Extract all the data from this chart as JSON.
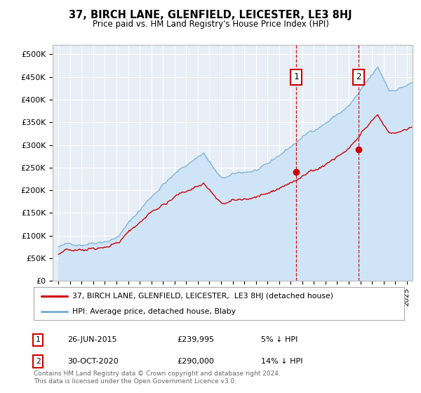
{
  "title": "37, BIRCH LANE, GLENFIELD, LEICESTER, LE3 8HJ",
  "subtitle": "Price paid vs. HM Land Registry's House Price Index (HPI)",
  "ylabel_ticks": [
    "£0",
    "£50K",
    "£100K",
    "£150K",
    "£200K",
    "£250K",
    "£300K",
    "£350K",
    "£400K",
    "£450K",
    "£500K"
  ],
  "ytick_values": [
    0,
    50000,
    100000,
    150000,
    200000,
    250000,
    300000,
    350000,
    400000,
    450000,
    500000
  ],
  "ylim": [
    0,
    520000
  ],
  "xlim_start": 1994.5,
  "xlim_end": 2025.5,
  "hpi_fill_color": "#d0e4f7",
  "hpi_line_color": "#7ab0d4",
  "price_color": "#cc0000",
  "plot_bg_color": "#e8eef5",
  "fig_bg_color": "#ffffff",
  "grid_color": "#ffffff",
  "marker1_date": 2015.49,
  "marker2_date": 2020.83,
  "sale1_price": 239995,
  "sale2_price": 290000,
  "legend_label_red": "37, BIRCH LANE, GLENFIELD, LEICESTER,  LE3 8HJ (detached house)",
  "legend_label_blue": "HPI: Average price, detached house, Blaby",
  "annotation1_date": "26-JUN-2015",
  "annotation1_price": "£239,995",
  "annotation1_pct": "5% ↓ HPI",
  "annotation2_date": "30-OCT-2020",
  "annotation2_price": "£290,000",
  "annotation2_pct": "14% ↓ HPI",
  "footer": "Contains HM Land Registry data © Crown copyright and database right 2024.\nThis data is licensed under the Open Government Licence v3.0."
}
